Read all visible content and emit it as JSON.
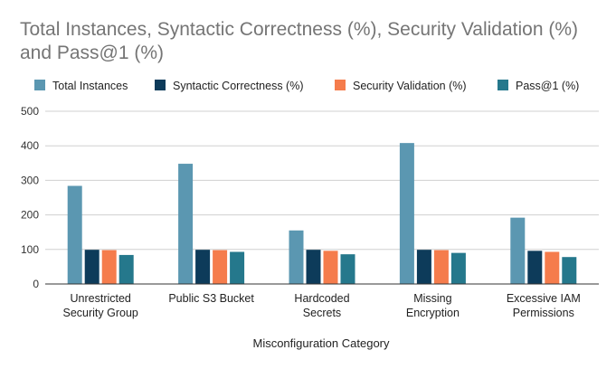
{
  "chart_data": {
    "type": "bar",
    "title": "Total Instances, Syntactic Correctness (%), Security Validation (%) and Pass@1 (%)",
    "xlabel": "Misconfiguration Category",
    "ylabel": "",
    "ylim": [
      0,
      500
    ],
    "yticks": [
      0,
      100,
      200,
      300,
      400,
      500
    ],
    "grid": true,
    "legend_position": "top",
    "categories": [
      [
        "Unrestricted",
        "Security Group"
      ],
      [
        "Public S3 Bucket"
      ],
      [
        "Hardcoded",
        "Secrets"
      ],
      [
        "Missing",
        "Encryption"
      ],
      [
        "Excessive IAM",
        "Permissions"
      ]
    ],
    "series": [
      {
        "name": "Total Instances",
        "color": "#5b97b1",
        "values": [
          284,
          348,
          155,
          408,
          192
        ]
      },
      {
        "name": "Syntactic Correctness (%)",
        "color": "#0d3b5a",
        "values": [
          99,
          99,
          99,
          99,
          96
        ]
      },
      {
        "name": "Security Validation (%)",
        "color": "#f57c4c",
        "values": [
          98,
          98,
          96,
          98,
          93
        ]
      },
      {
        "name": "Pass@1 (%)",
        "color": "#25788c",
        "values": [
          84,
          93,
          86,
          90,
          78
        ]
      }
    ]
  }
}
